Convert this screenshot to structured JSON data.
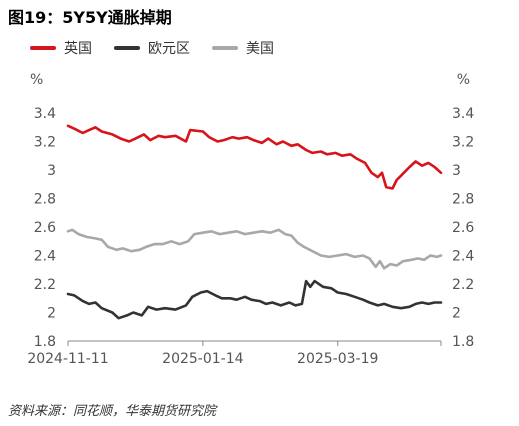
{
  "title": "图19：5Y5Y通胀掉期",
  "source": "资料来源：同花顺，华泰期货研究院",
  "colors": {
    "uk": "#d7141b",
    "euro": "#333333",
    "us": "#a8a8a8",
    "axis": "#888888"
  },
  "chart_data": {
    "type": "line",
    "unit_label_left": "%",
    "unit_label_right": "%",
    "ylim": [
      1.8,
      3.4
    ],
    "yticks": [
      "3.4",
      "3.2",
      "3",
      "2.8",
      "2.6",
      "2.4",
      "2.2",
      "2",
      "1.8"
    ],
    "xlim": [
      "2024-11-11",
      "2025-05-07"
    ],
    "xticks": [
      "2024-11-11",
      "2025-01-14",
      "2025-03-19"
    ],
    "grid": false,
    "legend_position": "top-left",
    "series": [
      {
        "name": "英国",
        "color": "#d7141b",
        "points": [
          [
            "2024-11-11",
            3.31
          ],
          [
            "2024-11-14",
            3.29
          ],
          [
            "2024-11-18",
            3.26
          ],
          [
            "2024-11-21",
            3.28
          ],
          [
            "2024-11-24",
            3.3
          ],
          [
            "2024-11-27",
            3.27
          ],
          [
            "2024-12-02",
            3.25
          ],
          [
            "2024-12-06",
            3.22
          ],
          [
            "2024-12-10",
            3.2
          ],
          [
            "2024-12-13",
            3.22
          ],
          [
            "2024-12-17",
            3.25
          ],
          [
            "2024-12-20",
            3.21
          ],
          [
            "2024-12-24",
            3.24
          ],
          [
            "2024-12-27",
            3.23
          ],
          [
            "2025-01-01",
            3.24
          ],
          [
            "2025-01-06",
            3.2
          ],
          [
            "2025-01-08",
            3.28
          ],
          [
            "2025-01-14",
            3.27
          ],
          [
            "2025-01-17",
            3.23
          ],
          [
            "2025-01-21",
            3.2
          ],
          [
            "2025-01-24",
            3.21
          ],
          [
            "2025-01-28",
            3.23
          ],
          [
            "2025-01-31",
            3.22
          ],
          [
            "2025-02-04",
            3.23
          ],
          [
            "2025-02-07",
            3.21
          ],
          [
            "2025-02-11",
            3.19
          ],
          [
            "2025-02-14",
            3.22
          ],
          [
            "2025-02-18",
            3.18
          ],
          [
            "2025-02-21",
            3.2
          ],
          [
            "2025-02-25",
            3.17
          ],
          [
            "2025-02-28",
            3.18
          ],
          [
            "2025-03-04",
            3.14
          ],
          [
            "2025-03-07",
            3.12
          ],
          [
            "2025-03-11",
            3.13
          ],
          [
            "2025-03-14",
            3.11
          ],
          [
            "2025-03-18",
            3.12
          ],
          [
            "2025-03-21",
            3.1
          ],
          [
            "2025-03-25",
            3.11
          ],
          [
            "2025-03-28",
            3.08
          ],
          [
            "2025-04-01",
            3.05
          ],
          [
            "2025-04-04",
            2.98
          ],
          [
            "2025-04-07",
            2.95
          ],
          [
            "2025-04-09",
            2.98
          ],
          [
            "2025-04-11",
            2.88
          ],
          [
            "2025-04-14",
            2.87
          ],
          [
            "2025-04-16",
            2.93
          ],
          [
            "2025-04-18",
            2.96
          ],
          [
            "2025-04-22",
            3.02
          ],
          [
            "2025-04-25",
            3.06
          ],
          [
            "2025-04-28",
            3.03
          ],
          [
            "2025-05-01",
            3.05
          ],
          [
            "2025-05-04",
            3.02
          ],
          [
            "2025-05-07",
            2.98
          ]
        ]
      },
      {
        "name": "欧元区",
        "color": "#333333",
        "points": [
          [
            "2024-11-11",
            2.13
          ],
          [
            "2024-11-14",
            2.12
          ],
          [
            "2024-11-18",
            2.08
          ],
          [
            "2024-11-21",
            2.06
          ],
          [
            "2024-11-24",
            2.07
          ],
          [
            "2024-11-27",
            2.03
          ],
          [
            "2024-12-02",
            2.0
          ],
          [
            "2024-12-05",
            1.96
          ],
          [
            "2024-12-09",
            1.98
          ],
          [
            "2024-12-12",
            2.0
          ],
          [
            "2024-12-16",
            1.98
          ],
          [
            "2024-12-19",
            2.04
          ],
          [
            "2024-12-23",
            2.02
          ],
          [
            "2024-12-27",
            2.03
          ],
          [
            "2025-01-01",
            2.02
          ],
          [
            "2025-01-06",
            2.05
          ],
          [
            "2025-01-09",
            2.11
          ],
          [
            "2025-01-13",
            2.14
          ],
          [
            "2025-01-16",
            2.15
          ],
          [
            "2025-01-20",
            2.12
          ],
          [
            "2025-01-23",
            2.1
          ],
          [
            "2025-01-27",
            2.1
          ],
          [
            "2025-01-30",
            2.09
          ],
          [
            "2025-02-03",
            2.11
          ],
          [
            "2025-02-06",
            2.09
          ],
          [
            "2025-02-10",
            2.08
          ],
          [
            "2025-02-13",
            2.06
          ],
          [
            "2025-02-16",
            2.07
          ],
          [
            "2025-02-20",
            2.05
          ],
          [
            "2025-02-24",
            2.07
          ],
          [
            "2025-02-27",
            2.05
          ],
          [
            "2025-03-02",
            2.06
          ],
          [
            "2025-03-04",
            2.22
          ],
          [
            "2025-03-06",
            2.18
          ],
          [
            "2025-03-08",
            2.22
          ],
          [
            "2025-03-12",
            2.18
          ],
          [
            "2025-03-16",
            2.17
          ],
          [
            "2025-03-19",
            2.14
          ],
          [
            "2025-03-23",
            2.13
          ],
          [
            "2025-03-27",
            2.11
          ],
          [
            "2025-03-31",
            2.09
          ],
          [
            "2025-04-03",
            2.07
          ],
          [
            "2025-04-07",
            2.05
          ],
          [
            "2025-04-10",
            2.06
          ],
          [
            "2025-04-14",
            2.04
          ],
          [
            "2025-04-18",
            2.03
          ],
          [
            "2025-04-22",
            2.04
          ],
          [
            "2025-04-25",
            2.06
          ],
          [
            "2025-04-28",
            2.07
          ],
          [
            "2025-05-01",
            2.06
          ],
          [
            "2025-05-04",
            2.07
          ],
          [
            "2025-05-07",
            2.07
          ]
        ]
      },
      {
        "name": "美国",
        "color": "#a8a8a8",
        "points": [
          [
            "2024-11-11",
            2.57
          ],
          [
            "2024-11-13",
            2.58
          ],
          [
            "2024-11-16",
            2.55
          ],
          [
            "2024-11-20",
            2.53
          ],
          [
            "2024-11-24",
            2.52
          ],
          [
            "2024-11-27",
            2.51
          ],
          [
            "2024-11-30",
            2.46
          ],
          [
            "2024-12-04",
            2.44
          ],
          [
            "2024-12-07",
            2.45
          ],
          [
            "2024-12-11",
            2.43
          ],
          [
            "2024-12-15",
            2.44
          ],
          [
            "2024-12-18",
            2.46
          ],
          [
            "2024-12-22",
            2.48
          ],
          [
            "2024-12-26",
            2.48
          ],
          [
            "2024-12-30",
            2.5
          ],
          [
            "2025-01-03",
            2.48
          ],
          [
            "2025-01-07",
            2.5
          ],
          [
            "2025-01-10",
            2.55
          ],
          [
            "2025-01-14",
            2.56
          ],
          [
            "2025-01-18",
            2.57
          ],
          [
            "2025-01-22",
            2.55
          ],
          [
            "2025-01-26",
            2.56
          ],
          [
            "2025-01-30",
            2.57
          ],
          [
            "2025-02-03",
            2.55
          ],
          [
            "2025-02-07",
            2.56
          ],
          [
            "2025-02-11",
            2.57
          ],
          [
            "2025-02-15",
            2.56
          ],
          [
            "2025-02-19",
            2.58
          ],
          [
            "2025-02-22",
            2.55
          ],
          [
            "2025-02-25",
            2.54
          ],
          [
            "2025-02-28",
            2.49
          ],
          [
            "2025-03-03",
            2.46
          ],
          [
            "2025-03-07",
            2.43
          ],
          [
            "2025-03-11",
            2.4
          ],
          [
            "2025-03-15",
            2.39
          ],
          [
            "2025-03-19",
            2.4
          ],
          [
            "2025-03-23",
            2.41
          ],
          [
            "2025-03-27",
            2.39
          ],
          [
            "2025-03-31",
            2.4
          ],
          [
            "2025-04-03",
            2.38
          ],
          [
            "2025-04-06",
            2.32
          ],
          [
            "2025-04-08",
            2.36
          ],
          [
            "2025-04-10",
            2.31
          ],
          [
            "2025-04-13",
            2.34
          ],
          [
            "2025-04-16",
            2.33
          ],
          [
            "2025-04-19",
            2.36
          ],
          [
            "2025-04-23",
            2.37
          ],
          [
            "2025-04-26",
            2.38
          ],
          [
            "2025-04-29",
            2.37
          ],
          [
            "2025-05-02",
            2.4
          ],
          [
            "2025-05-05",
            2.39
          ],
          [
            "2025-05-07",
            2.4
          ]
        ]
      }
    ]
  }
}
